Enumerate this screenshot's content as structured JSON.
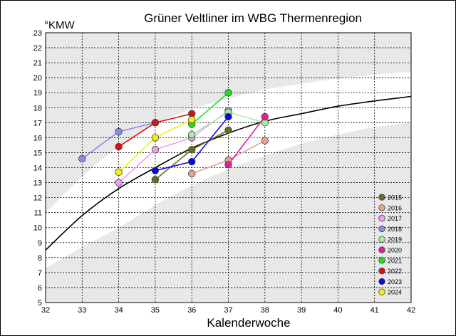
{
  "chart_data": {
    "type": "line",
    "title": "Grüner Veltliner im WBG Thermenregion",
    "ylabel": "°KMW",
    "xlabel": "Kalenderwoche",
    "xlim": [
      32,
      42
    ],
    "ylim": [
      5,
      23
    ],
    "xticks": [
      "32",
      "33",
      "34",
      "35",
      "36",
      "37",
      "38",
      "39",
      "40",
      "41",
      "42"
    ],
    "yticks": [
      "5",
      "6",
      "7",
      "8",
      "9",
      "10",
      "11",
      "12",
      "13",
      "14",
      "15",
      "16",
      "17",
      "18",
      "19",
      "20",
      "21",
      "22",
      "23"
    ],
    "grid": true,
    "legend": "bottom-right",
    "series": [
      {
        "name": "2015",
        "color": "#6b6b1a",
        "x": [
          35,
          36,
          37
        ],
        "y": [
          13.2,
          15.2,
          16.5
        ]
      },
      {
        "name": "2016",
        "color": "#e8a090",
        "x": [
          36,
          37,
          38
        ],
        "y": [
          13.6,
          14.5,
          15.8
        ]
      },
      {
        "name": "2017",
        "color": "#f0a0f0",
        "x": [
          34,
          35,
          36,
          37
        ],
        "y": [
          13.0,
          15.2,
          16.0,
          17.8
        ]
      },
      {
        "name": "2018",
        "color": "#8c8ce8",
        "x": [
          33,
          34,
          35
        ],
        "y": [
          14.6,
          16.4,
          17.0
        ]
      },
      {
        "name": "2019",
        "color": "#a0f0a0",
        "x": [
          36,
          37,
          38
        ],
        "y": [
          16.2,
          17.7,
          17.0
        ]
      },
      {
        "name": "2020",
        "color": "#e020a0",
        "x": [
          37,
          38
        ],
        "y": [
          14.2,
          17.4
        ]
      },
      {
        "name": "2021",
        "color": "#20e020",
        "x": [
          36,
          37
        ],
        "y": [
          16.9,
          19.0
        ]
      },
      {
        "name": "2022",
        "color": "#e01010",
        "x": [
          34,
          35,
          36
        ],
        "y": [
          15.4,
          17.0,
          17.6
        ]
      },
      {
        "name": "2023",
        "color": "#0a0ae0",
        "x": [
          35,
          36,
          37
        ],
        "y": [
          13.8,
          14.4,
          17.4
        ]
      },
      {
        "name": "2024",
        "color": "#f0f010",
        "x": [
          34,
          35,
          36
        ],
        "y": [
          13.7,
          16.0,
          17.2
        ]
      }
    ],
    "reference_curve": {
      "color": "#000000",
      "x": [
        32,
        33,
        34,
        35,
        36,
        37,
        38,
        39,
        40,
        41,
        42
      ],
      "y": [
        8.5,
        10.8,
        12.6,
        14.0,
        15.3,
        16.3,
        17.1,
        17.6,
        18.1,
        18.45,
        18.75
      ]
    },
    "bands": {
      "color": "#e8e8e8",
      "upper_lower_edge": {
        "x": [
          32,
          33,
          34,
          35,
          36,
          37,
          38,
          39,
          40,
          41,
          42
        ],
        "y": [
          11.0,
          13.4,
          15.4,
          16.9,
          17.9,
          18.6,
          19.2,
          19.6,
          19.95,
          20.2,
          20.4
        ]
      },
      "lower_upper_edge": {
        "x": [
          32,
          33,
          34,
          35,
          36,
          37,
          38,
          39,
          40,
          41,
          42
        ],
        "y": [
          7.3,
          8.7,
          10.0,
          11.5,
          12.8,
          13.9,
          14.8,
          15.6,
          16.2,
          16.7,
          17.0
        ]
      }
    }
  }
}
